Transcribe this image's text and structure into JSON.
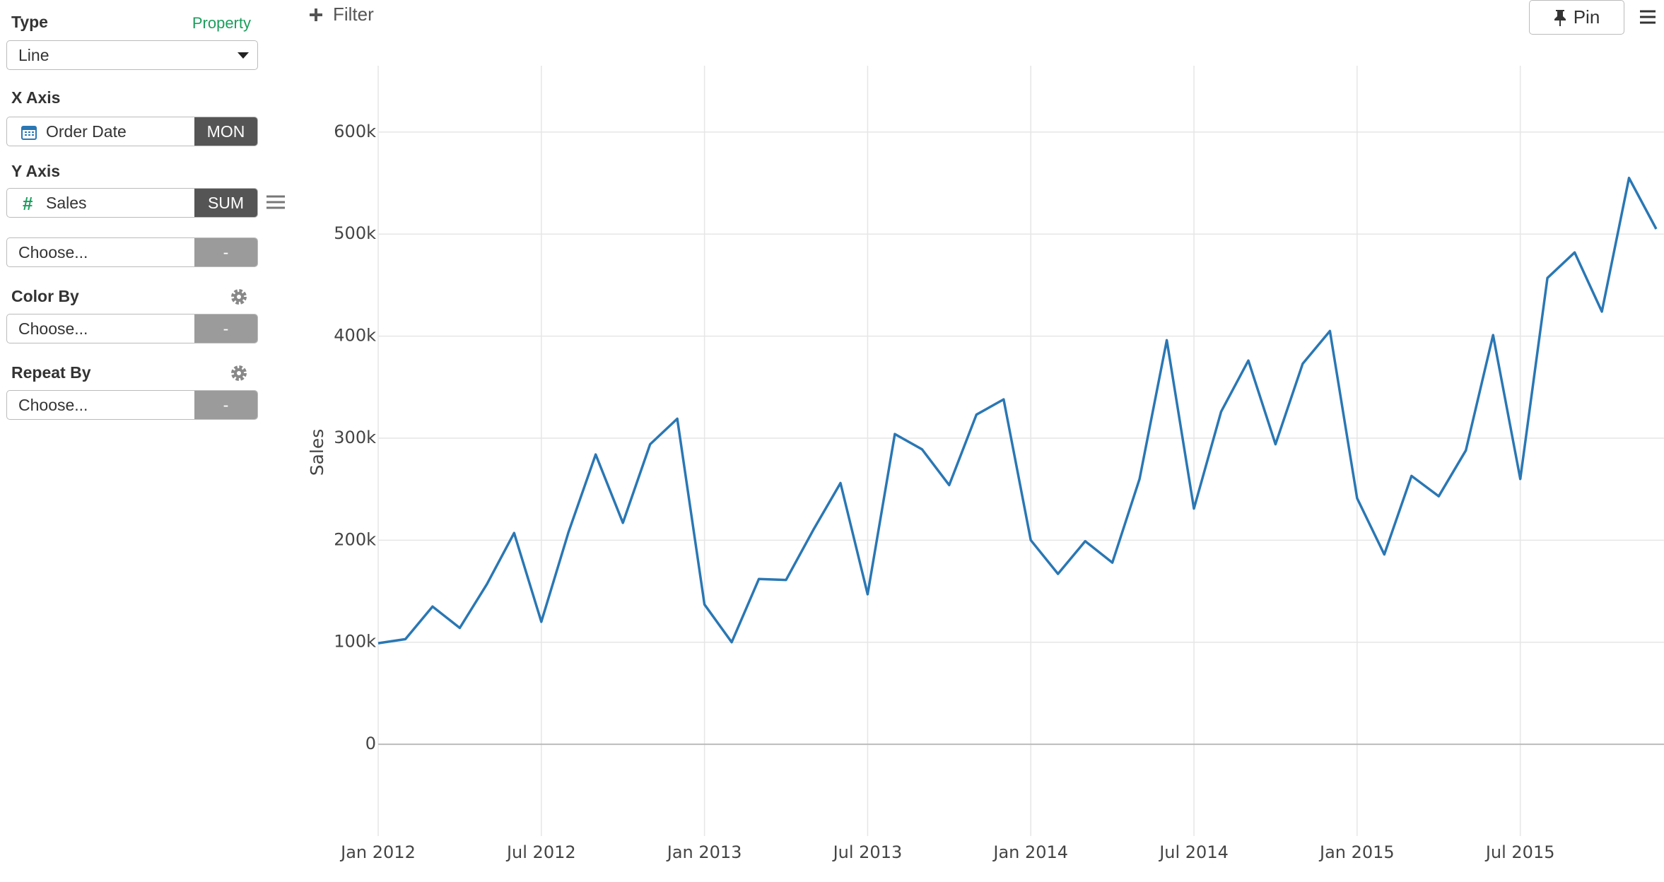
{
  "sidebar": {
    "type_label": "Type",
    "property_link": "Property",
    "type_value": "Line",
    "x_axis_label": "X Axis",
    "x_field": "Order Date",
    "x_agg": "MON",
    "y_axis_label": "Y Axis",
    "y_field": "Sales",
    "y_agg": "SUM",
    "y2_placeholder": "Choose...",
    "y2_agg": "-",
    "color_by_label": "Color By",
    "color_placeholder": "Choose...",
    "color_agg": "-",
    "repeat_by_label": "Repeat By",
    "repeat_placeholder": "Choose...",
    "repeat_agg": "-"
  },
  "toolbar": {
    "filter": "Filter",
    "pin": "Pin"
  },
  "chart_data": {
    "type": "line",
    "y_label": "Sales",
    "color": "#2a77b4",
    "grid": true,
    "x": [
      "2012-01",
      "2012-02",
      "2012-03",
      "2012-04",
      "2012-05",
      "2012-06",
      "2012-07",
      "2012-08",
      "2012-09",
      "2012-10",
      "2012-11",
      "2012-12",
      "2013-01",
      "2013-02",
      "2013-03",
      "2013-04",
      "2013-05",
      "2013-06",
      "2013-07",
      "2013-08",
      "2013-09",
      "2013-10",
      "2013-11",
      "2013-12",
      "2014-01",
      "2014-02",
      "2014-03",
      "2014-04",
      "2014-05",
      "2014-06",
      "2014-07",
      "2014-08",
      "2014-09",
      "2014-10",
      "2014-11",
      "2014-12",
      "2015-01",
      "2015-02",
      "2015-03",
      "2015-04",
      "2015-05",
      "2015-06",
      "2015-07",
      "2015-08",
      "2015-09",
      "2015-10",
      "2015-11",
      "2015-12"
    ],
    "values": [
      99000,
      103000,
      135000,
      114000,
      157000,
      207000,
      120000,
      208000,
      284000,
      217000,
      294000,
      319000,
      137000,
      100000,
      162000,
      161000,
      210000,
      256000,
      147000,
      304000,
      289000,
      254000,
      323000,
      338000,
      200000,
      167000,
      199000,
      178000,
      260000,
      396000,
      231000,
      326000,
      376000,
      294000,
      373000,
      405000,
      241000,
      186000,
      263000,
      243000,
      288000,
      401000,
      260000,
      457000,
      482000,
      424000,
      555000,
      505000
    ],
    "xlim": [
      "2012-01",
      "2015-12"
    ],
    "xticks": [
      {
        "value": "2012-01",
        "label": "Jan 2012"
      },
      {
        "value": "2012-07",
        "label": "Jul 2012"
      },
      {
        "value": "2013-01",
        "label": "Jan 2013"
      },
      {
        "value": "2013-07",
        "label": "Jul 2013"
      },
      {
        "value": "2014-01",
        "label": "Jan 2014"
      },
      {
        "value": "2014-07",
        "label": "Jul 2014"
      },
      {
        "value": "2015-01",
        "label": "Jan 2015"
      },
      {
        "value": "2015-07",
        "label": "Jul 2015"
      }
    ],
    "ylim": [
      -90000,
      665000
    ],
    "yticks": [
      0,
      {
        "value": 100000,
        "label": "100k"
      },
      {
        "value": 200000,
        "label": "200k"
      },
      {
        "value": 300000,
        "label": "300k"
      },
      {
        "value": 400000,
        "label": "400k"
      },
      {
        "value": 500000,
        "label": "500k"
      },
      {
        "value": 600000,
        "label": "600k"
      }
    ]
  }
}
